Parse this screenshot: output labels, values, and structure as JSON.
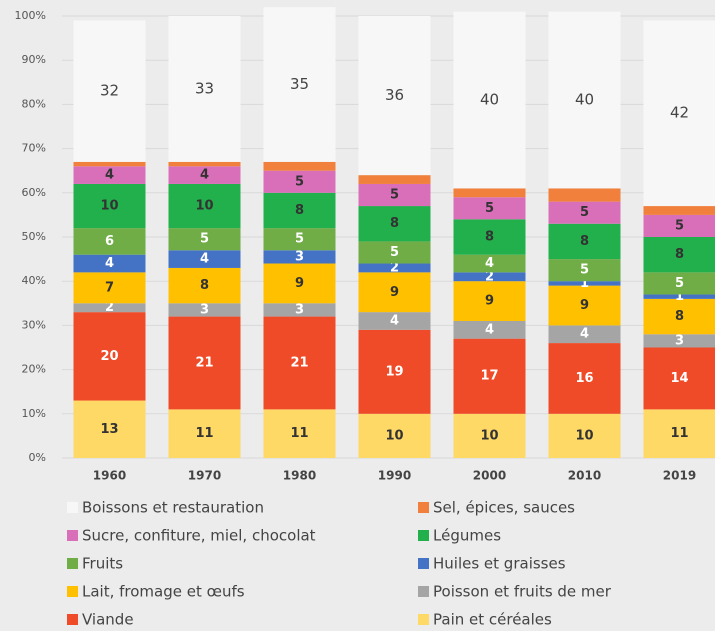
{
  "chart_data": {
    "type": "stacked_bar",
    "categories": [
      "1960",
      "1970",
      "1980",
      "1990",
      "2000",
      "2010",
      "2019"
    ],
    "series": [
      {
        "name": "Pain et céréales",
        "color": "#ffd966",
        "values": [
          13,
          11,
          11,
          10,
          10,
          10,
          11
        ]
      },
      {
        "name": "Viande",
        "color": "#f04b28",
        "values": [
          20,
          21,
          21,
          19,
          17,
          16,
          14
        ]
      },
      {
        "name": "Poisson et fruits de mer",
        "color": "#a5a5a5",
        "values": [
          2,
          3,
          3,
          4,
          4,
          4,
          3
        ]
      },
      {
        "name": "Lait, fromage et œufs",
        "color": "#ffc000",
        "values": [
          7,
          8,
          9,
          9,
          9,
          9,
          8
        ]
      },
      {
        "name": "Huiles et graisses",
        "color": "#4472c4",
        "values": [
          4,
          4,
          3,
          2,
          2,
          1,
          1
        ]
      },
      {
        "name": "Fruits",
        "color": "#70ad47",
        "values": [
          6,
          5,
          5,
          5,
          4,
          5,
          5
        ]
      },
      {
        "name": "Légumes",
        "color": "#21b04b",
        "values": [
          10,
          10,
          8,
          8,
          8,
          8,
          8
        ]
      },
      {
        "name": "Sucre, confiture, miel, chocolat",
        "color": "#d86fb8",
        "values": [
          4,
          4,
          5,
          5,
          5,
          5,
          5
        ]
      },
      {
        "name": "Sel, épices, sauces",
        "color": "#f0803c",
        "values": [
          1,
          1,
          2,
          2,
          2,
          3,
          2
        ]
      },
      {
        "name": "Boissons et restauration",
        "color": "#f7f7f7",
        "values": [
          32,
          33,
          35,
          36,
          40,
          40,
          42
        ]
      }
    ],
    "ylim": [
      0,
      100
    ],
    "yticks": [
      {
        "value": 0,
        "label": "0%"
      },
      {
        "value": 10,
        "label": "10%"
      },
      {
        "value": 20,
        "label": "20%"
      },
      {
        "value": 30,
        "label": "30%"
      },
      {
        "value": 40,
        "label": "40%"
      },
      {
        "value": 50,
        "label": "50%"
      },
      {
        "value": 60,
        "label": "60%"
      },
      {
        "value": 70,
        "label": "70%"
      },
      {
        "value": 80,
        "label": "80%"
      },
      {
        "value": 90,
        "label": "90%"
      },
      {
        "value": 100,
        "label": "100%"
      }
    ],
    "grid": true
  }
}
